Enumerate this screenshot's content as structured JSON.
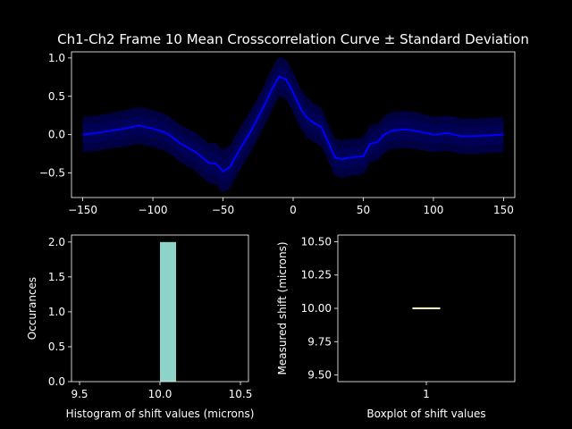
{
  "chart_data": [
    {
      "type": "line",
      "title": "Ch1-Ch2 Frame 10 Mean Crosscorrelation Curve ± Standard Deviation",
      "xlim": [
        -158,
        158
      ],
      "ylim": [
        -0.82,
        1.08
      ],
      "x_ticks": [
        -150,
        -100,
        -50,
        0,
        50,
        100,
        150
      ],
      "y_ticks": [
        -0.5,
        0.0,
        0.5,
        1.0
      ],
      "x_tick_labels": [
        "−150",
        "−100",
        "−50",
        "0",
        "50",
        "100",
        "150"
      ],
      "y_tick_labels": [
        "−0.5",
        "0.0",
        "0.5",
        "1.0"
      ],
      "colors": {
        "line": "#0000ff",
        "band": "#00007a",
        "band_inner": "#000060"
      },
      "series": [
        {
          "x": [
            -150,
            -140,
            -130,
            -120,
            -110,
            -100,
            -90,
            -80,
            -70,
            -60,
            -55,
            -50,
            -45,
            -40,
            -30,
            -20,
            -15,
            -10,
            -5,
            0,
            5,
            10,
            15,
            20,
            25,
            30,
            35,
            40,
            50,
            55,
            60,
            65,
            70,
            80,
            90,
            100,
            110,
            120,
            130,
            140,
            150
          ],
          "y": [
            0.0,
            0.02,
            0.05,
            0.08,
            0.12,
            0.08,
            0.02,
            -0.12,
            -0.22,
            -0.37,
            -0.38,
            -0.48,
            -0.42,
            -0.25,
            0.05,
            0.4,
            0.6,
            0.76,
            0.72,
            0.55,
            0.35,
            0.22,
            0.15,
            0.1,
            -0.1,
            -0.3,
            -0.32,
            -0.3,
            -0.28,
            -0.12,
            -0.1,
            0.0,
            0.05,
            0.07,
            0.04,
            0.0,
            0.02,
            -0.02,
            -0.02,
            -0.01,
            0.0
          ],
          "std": [
            0.23,
            0.23,
            0.23,
            0.24,
            0.24,
            0.24,
            0.24,
            0.24,
            0.25,
            0.26,
            0.27,
            0.28,
            0.28,
            0.28,
            0.27,
            0.27,
            0.27,
            0.26,
            0.26,
            0.26,
            0.26,
            0.26,
            0.25,
            0.25,
            0.24,
            0.24,
            0.24,
            0.24,
            0.24,
            0.24,
            0.24,
            0.24,
            0.24,
            0.24,
            0.24,
            0.23,
            0.23,
            0.23,
            0.23,
            0.23,
            0.23
          ]
        }
      ]
    },
    {
      "type": "bar",
      "xlabel": "Histogram of shift values (microns)",
      "ylabel": "Occurances",
      "xlim": [
        9.45,
        10.55
      ],
      "ylim": [
        0,
        2.1
      ],
      "x_ticks": [
        9.5,
        10.0,
        10.5
      ],
      "y_ticks": [
        0.0,
        0.5,
        1.0,
        1.5,
        2.0
      ],
      "x_tick_labels": [
        "9.5",
        "10.0",
        "10.5"
      ],
      "y_tick_labels": [
        "0.0",
        "0.5",
        "1.0",
        "1.5",
        "2.0"
      ],
      "bins": [
        {
          "start": 10.0,
          "end": 10.1,
          "count": 2
        }
      ],
      "colors": {
        "bar": "#8dd3c7"
      }
    },
    {
      "type": "box",
      "xlabel": "Boxplot of shift values",
      "ylabel": "Measured shift (microns)",
      "ylim": [
        9.45,
        10.55
      ],
      "y_ticks": [
        9.5,
        9.75,
        10.0,
        10.25,
        10.5
      ],
      "y_tick_labels": [
        "9.50",
        "9.75",
        "10.00",
        "10.25",
        "10.50"
      ],
      "categories": [
        "1"
      ],
      "boxes": [
        {
          "q1": 10.0,
          "median": 10.0,
          "q3": 10.0,
          "whisker_low": 10.0,
          "whisker_high": 10.0
        }
      ],
      "colors": {
        "box": "#ffffff",
        "median": "#ffffb3"
      }
    }
  ]
}
